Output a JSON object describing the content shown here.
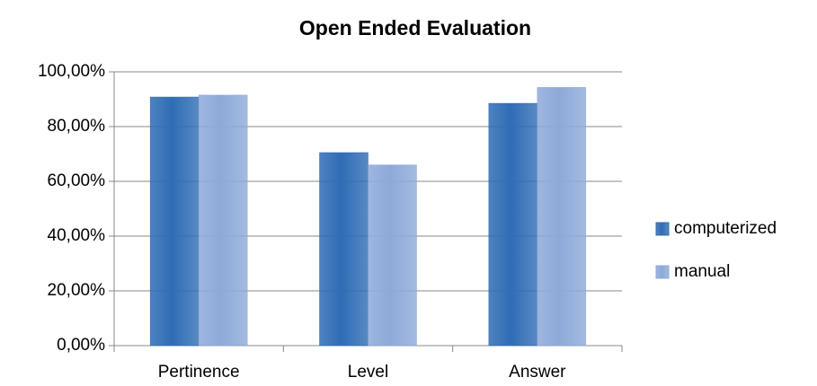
{
  "chart_data": {
    "type": "bar",
    "title": "Open Ended Evaluation",
    "categories": [
      "Pertinence",
      "Level",
      "Answer"
    ],
    "series": [
      {
        "name": "computerized",
        "color": "#2f6cb5",
        "values": [
          90.8,
          70.5,
          88.5
        ]
      },
      {
        "name": "manual",
        "color": "#8ea9d9",
        "values": [
          91.5,
          66,
          94.3
        ]
      }
    ],
    "ylim": [
      0,
      100
    ],
    "yticks": [
      {
        "value": 0,
        "label": "0,00%"
      },
      {
        "value": 20,
        "label": "20,00%"
      },
      {
        "value": 40,
        "label": "40,00%"
      },
      {
        "value": 60,
        "label": "60,00%"
      },
      {
        "value": 80,
        "label": "80,00%"
      },
      {
        "value": 100,
        "label": "100,00%"
      }
    ],
    "grid": true,
    "legend": "right"
  }
}
